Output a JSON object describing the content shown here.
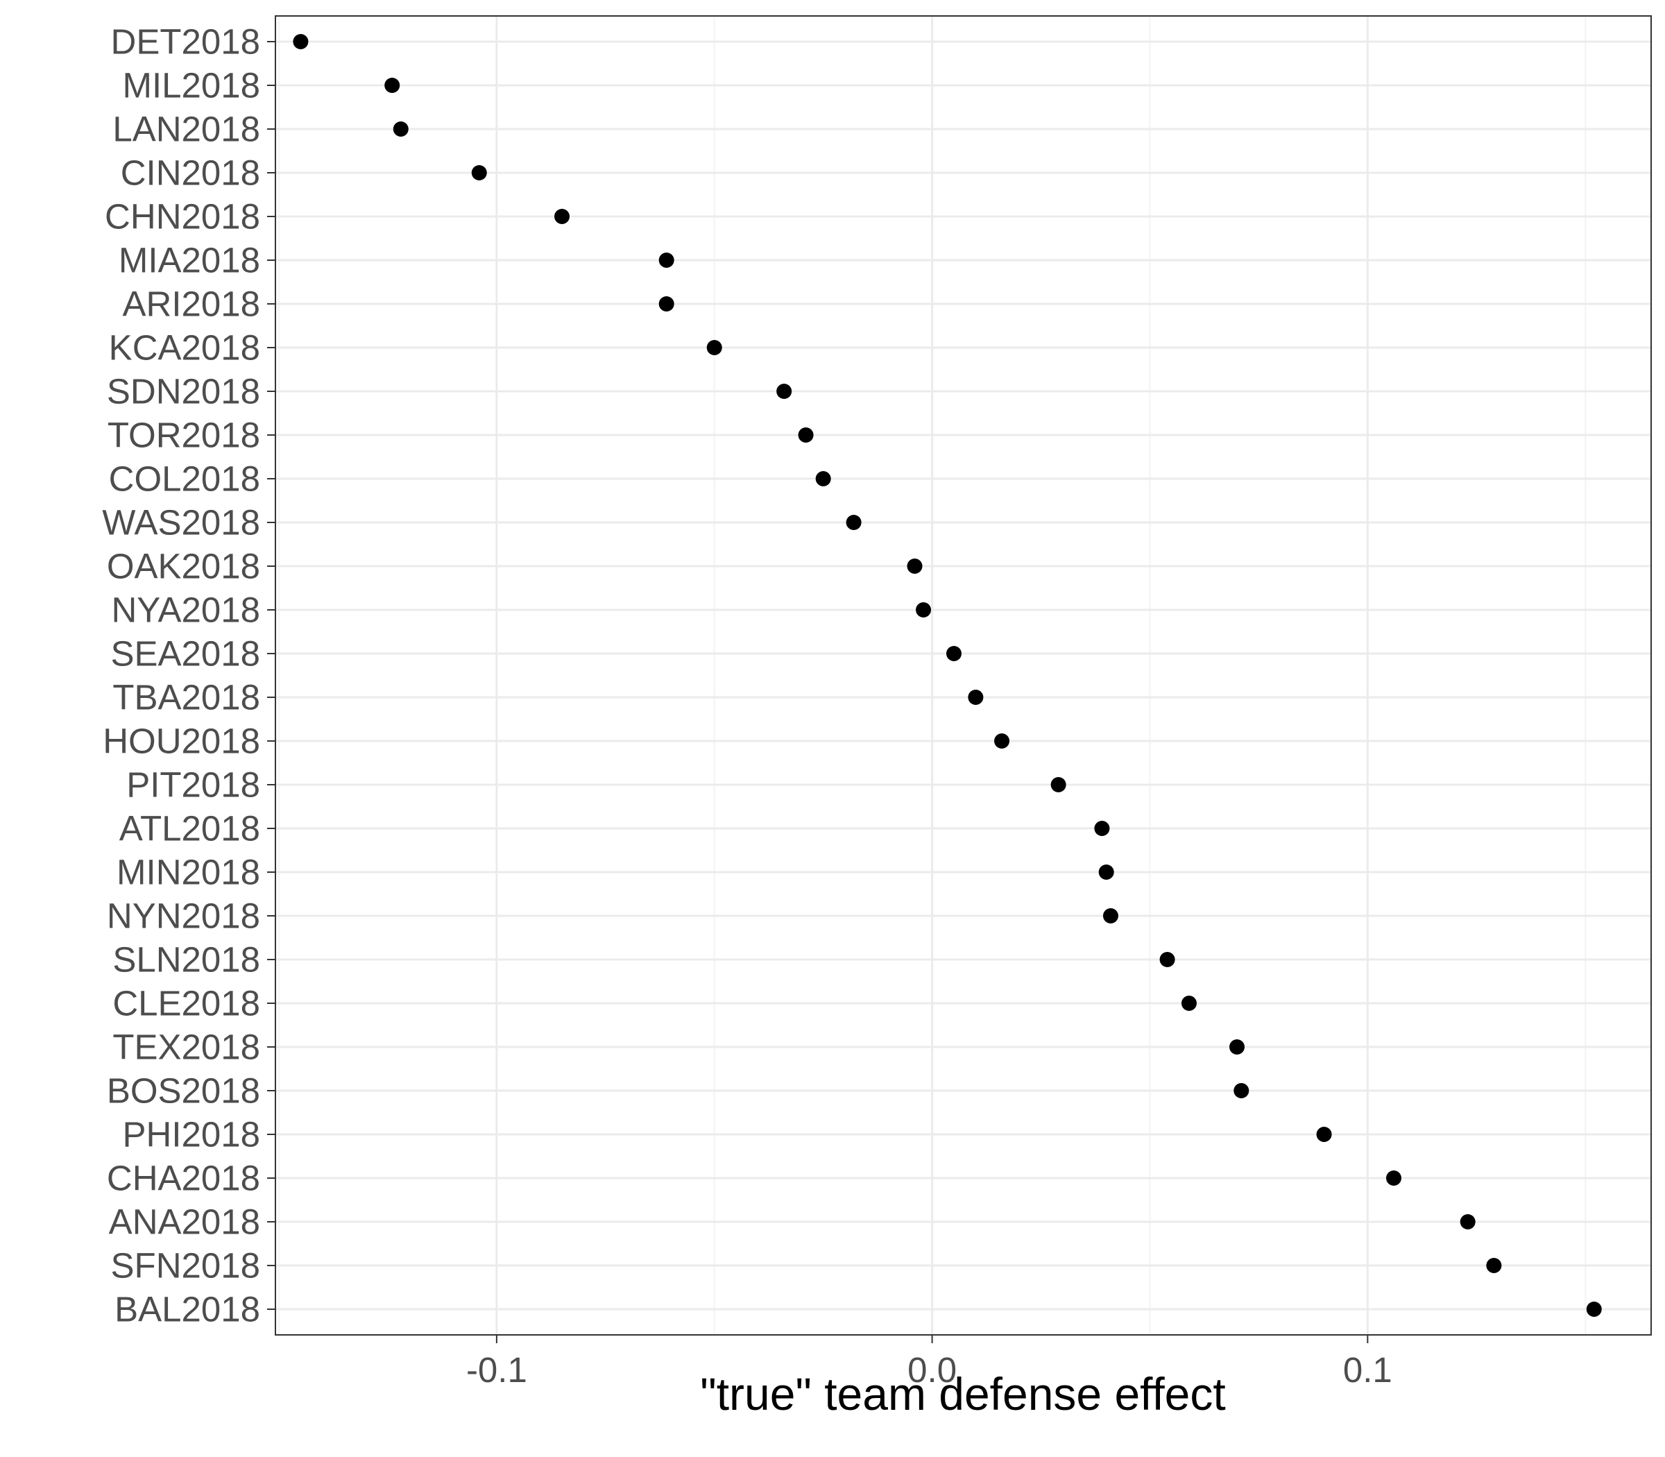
{
  "chart_data": {
    "type": "scatter",
    "title": "",
    "xlabel": "\"true\" team defense effect",
    "ylabel": "",
    "xlim": [
      -0.1508,
      0.1651
    ],
    "x_ticks": [
      -0.1,
      0.0,
      0.1
    ],
    "x_tick_labels": [
      "-0.1",
      "0.0",
      "0.1"
    ],
    "grid": true,
    "legend": "none",
    "point_color": "#000000",
    "panel_border_color": "#333333",
    "grid_major_color": "#ebebeb",
    "grid_minor_color": "#f3f3f3",
    "categories": [
      "DET2018",
      "MIL2018",
      "LAN2018",
      "CIN2018",
      "CHN2018",
      "MIA2018",
      "ARI2018",
      "KCA2018",
      "SDN2018",
      "TOR2018",
      "COL2018",
      "WAS2018",
      "OAK2018",
      "NYA2018",
      "SEA2018",
      "TBA2018",
      "HOU2018",
      "PIT2018",
      "ATL2018",
      "MIN2018",
      "NYN2018",
      "SLN2018",
      "CLE2018",
      "TEX2018",
      "BOS2018",
      "PHI2018",
      "CHA2018",
      "ANA2018",
      "SFN2018",
      "BAL2018"
    ],
    "values": [
      -0.145,
      -0.124,
      -0.122,
      -0.104,
      -0.085,
      -0.061,
      -0.061,
      -0.05,
      -0.034,
      -0.029,
      -0.025,
      -0.018,
      -0.004,
      -0.002,
      0.005,
      0.01,
      0.016,
      0.029,
      0.039,
      0.04,
      0.041,
      0.054,
      0.059,
      0.07,
      0.071,
      0.09,
      0.106,
      0.123,
      0.129,
      0.152
    ]
  }
}
